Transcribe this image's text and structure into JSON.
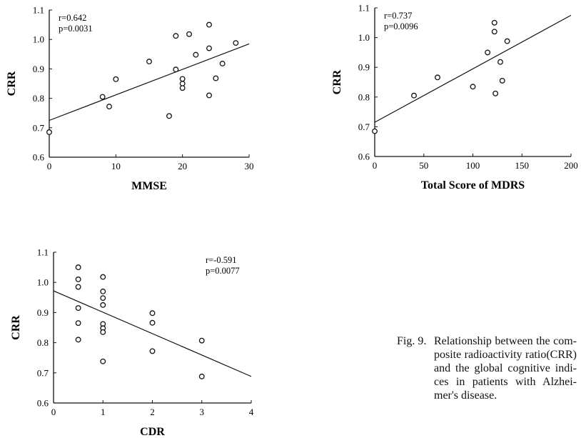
{
  "chart_data": [
    {
      "type": "scatter",
      "xlabel": "MMSE",
      "ylabel": "CRR",
      "xlim": [
        0,
        30
      ],
      "ylim": [
        0.6,
        1.1
      ],
      "xticks": [
        0,
        10,
        20,
        30
      ],
      "yticks": [
        0.6,
        0.7,
        0.8,
        0.9,
        1.0,
        1.1
      ],
      "ytick_labels": [
        "0.6",
        "0.7",
        "0.8",
        "0.9",
        "1.0",
        "1.1"
      ],
      "annotation": [
        "r=0.642",
        "p=0.0031"
      ],
      "regression": {
        "from": [
          0,
          0.725
        ],
        "to": [
          30,
          0.985
        ]
      },
      "points": [
        [
          0,
          0.685
        ],
        [
          8,
          0.805
        ],
        [
          9,
          0.772
        ],
        [
          10,
          0.865
        ],
        [
          15,
          0.925
        ],
        [
          18,
          0.74
        ],
        [
          19,
          1.012
        ],
        [
          19,
          0.898
        ],
        [
          20,
          0.866
        ],
        [
          20,
          0.85
        ],
        [
          20,
          0.835
        ],
        [
          21,
          1.018
        ],
        [
          22,
          0.948
        ],
        [
          24,
          1.05
        ],
        [
          24,
          0.97
        ],
        [
          24,
          0.81
        ],
        [
          25,
          0.868
        ],
        [
          26,
          0.918
        ],
        [
          28,
          0.988
        ]
      ]
    },
    {
      "type": "scatter",
      "xlabel": "Total Score of MDRS",
      "ylabel": "CRR",
      "xlim": [
        0,
        200
      ],
      "ylim": [
        0.6,
        1.1
      ],
      "xticks": [
        0,
        50,
        100,
        150,
        200
      ],
      "yticks": [
        0.6,
        0.7,
        0.8,
        0.9,
        1.0,
        1.1
      ],
      "ytick_labels": [
        "0.6",
        "0.7",
        "0.8",
        "0.9",
        "1.0",
        "1.1"
      ],
      "annotation": [
        "r=0.737",
        "p=0.0096"
      ],
      "regression": {
        "from": [
          0,
          0.715
        ],
        "to": [
          200,
          1.075
        ]
      },
      "points": [
        [
          0,
          0.685
        ],
        [
          40,
          0.805
        ],
        [
          64,
          0.866
        ],
        [
          100,
          0.835
        ],
        [
          115,
          0.95
        ],
        [
          122,
          1.05
        ],
        [
          122,
          1.02
        ],
        [
          123,
          0.812
        ],
        [
          128,
          0.918
        ],
        [
          130,
          0.855
        ],
        [
          135,
          0.988
        ]
      ]
    },
    {
      "type": "scatter",
      "xlabel": "CDR",
      "ylabel": "CRR",
      "xlim": [
        0,
        4
      ],
      "ylim": [
        0.6,
        1.1
      ],
      "xticks": [
        0,
        1,
        2,
        3,
        4
      ],
      "yticks": [
        0.6,
        0.7,
        0.8,
        0.9,
        1.0,
        1.1
      ],
      "ytick_labels": [
        "0.6",
        "0.7",
        "0.8",
        "0.9",
        "1.0",
        "1.1"
      ],
      "annotation": [
        "r=-0.591",
        "p=0.0077"
      ],
      "regression": {
        "from": [
          0,
          0.972
        ],
        "to": [
          4,
          0.688
        ]
      },
      "points": [
        [
          0.5,
          1.05
        ],
        [
          0.5,
          1.01
        ],
        [
          0.5,
          0.985
        ],
        [
          0.5,
          0.915
        ],
        [
          0.5,
          0.865
        ],
        [
          0.5,
          0.81
        ],
        [
          1,
          1.018
        ],
        [
          1,
          0.97
        ],
        [
          1,
          0.948
        ],
        [
          1,
          0.925
        ],
        [
          1,
          0.862
        ],
        [
          1,
          0.848
        ],
        [
          1,
          0.835
        ],
        [
          1,
          0.738
        ],
        [
          2,
          0.898
        ],
        [
          2,
          0.866
        ],
        [
          2,
          0.772
        ],
        [
          3,
          0.807
        ],
        [
          3,
          0.688
        ]
      ]
    }
  ],
  "caption": {
    "label": "Fig. 9.",
    "text": "Relationship between the com­posite radioactivity ratio(CRR) and the global cognitive indi­ces in patients with Alzhei­mer's disease."
  }
}
